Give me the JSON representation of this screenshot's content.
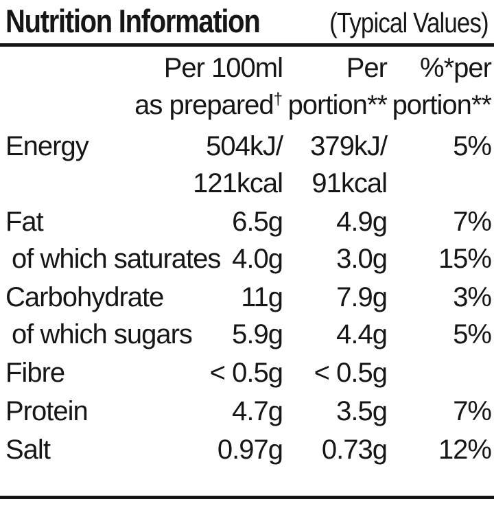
{
  "title": {
    "main": "Nutrition Information",
    "sub": "(Typical Values)"
  },
  "header": {
    "per100ml_line1": "Per 100ml",
    "per100ml_line2": "as prepared",
    "per100ml_footnote_mark": "†",
    "portion_line1": "Per",
    "portion_line2": "portion**",
    "percent_line1": "%*per",
    "percent_line2": "portion**"
  },
  "rows": [
    {
      "label": "Energy",
      "per100_line1": "504kJ/",
      "per100_line2": "121kcal",
      "portion_line1": "379kJ/",
      "portion_line2": "91kcal",
      "percent": "5%"
    },
    {
      "label": "Fat",
      "per100": "6.5g",
      "portion": "4.9g",
      "percent": "7%"
    },
    {
      "label": "of which saturates",
      "per100": "4.0g",
      "portion": "3.0g",
      "percent": "15%"
    },
    {
      "label": "Carbohydrate",
      "per100": "11g",
      "portion": "7.9g",
      "percent": "3%"
    },
    {
      "label": "of which sugars",
      "per100": "5.9g",
      "portion": "4.4g",
      "percent": "5%"
    },
    {
      "label": "Fibre",
      "per100": "< 0.5g",
      "portion": "< 0.5g",
      "percent": ""
    },
    {
      "label": "Protein",
      "per100": "4.7g",
      "portion": "3.5g",
      "percent": "7%"
    },
    {
      "label": "Salt",
      "per100": "0.97g",
      "portion": "0.73g",
      "percent": "12%"
    }
  ],
  "colors": {
    "text": "#161616",
    "background": "#ffffff",
    "rule": "#161616"
  }
}
